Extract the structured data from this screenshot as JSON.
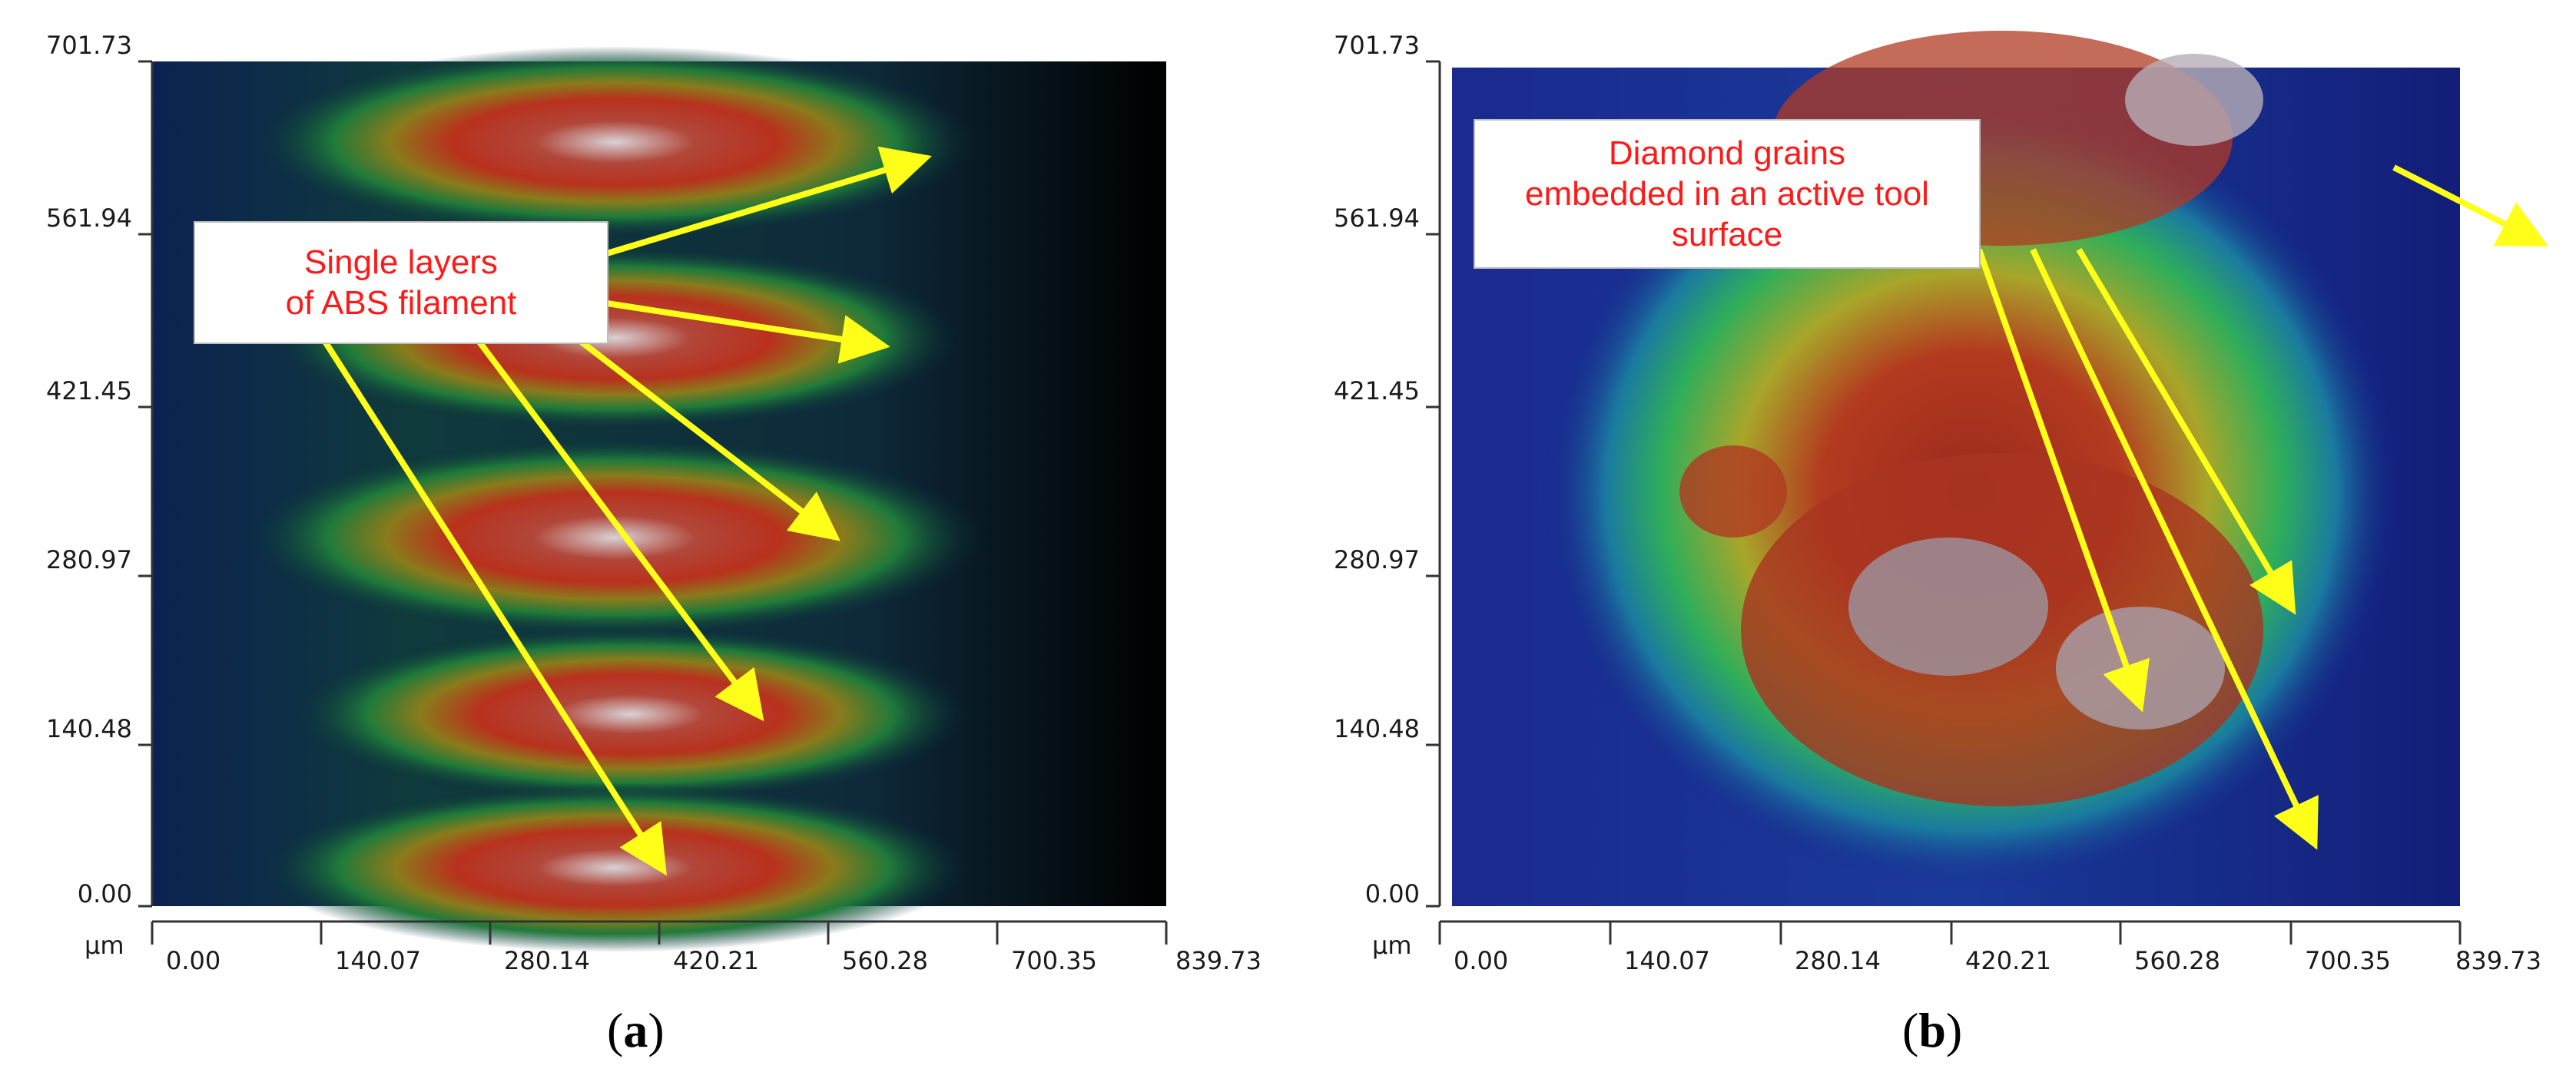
{
  "figure": {
    "panels": [
      {
        "id": "a",
        "label_open": "(",
        "label_letter": "a",
        "label_close": ")",
        "callout_lines": [
          "Single layers",
          "of ABS filament"
        ],
        "y_ticks": [
          "701.73",
          "561.94",
          "421.45",
          "280.97",
          "140.48",
          "0.00"
        ],
        "x_ticks": [
          "0.00",
          "140.07",
          "280.14",
          "420.21",
          "560.28",
          "700.35",
          "839.73"
        ],
        "x_unit": "µm",
        "arrow_count": 5
      },
      {
        "id": "b",
        "label_open": "(",
        "label_letter": "b",
        "label_close": ")",
        "callout_lines": [
          "Diamond grains",
          "embedded in an active tool",
          "surface"
        ],
        "y_ticks": [
          "701.73",
          "561.94",
          "421.45",
          "280.97",
          "140.48",
          "0.00"
        ],
        "x_ticks": [
          "0.00",
          "140.07",
          "280.14",
          "420.21",
          "560.28",
          "700.35",
          "839.73"
        ],
        "x_unit": "µm",
        "arrow_count": 4
      }
    ],
    "colors": {
      "arrow": "#ffff1a",
      "callout_text": "#ff1a1a",
      "axis": "#333333",
      "surface_low": "#0a1a5e",
      "surface_mid": "#2fae5a",
      "surface_high": "#b8311d",
      "surface_peak": "#c8c2c8"
    }
  }
}
